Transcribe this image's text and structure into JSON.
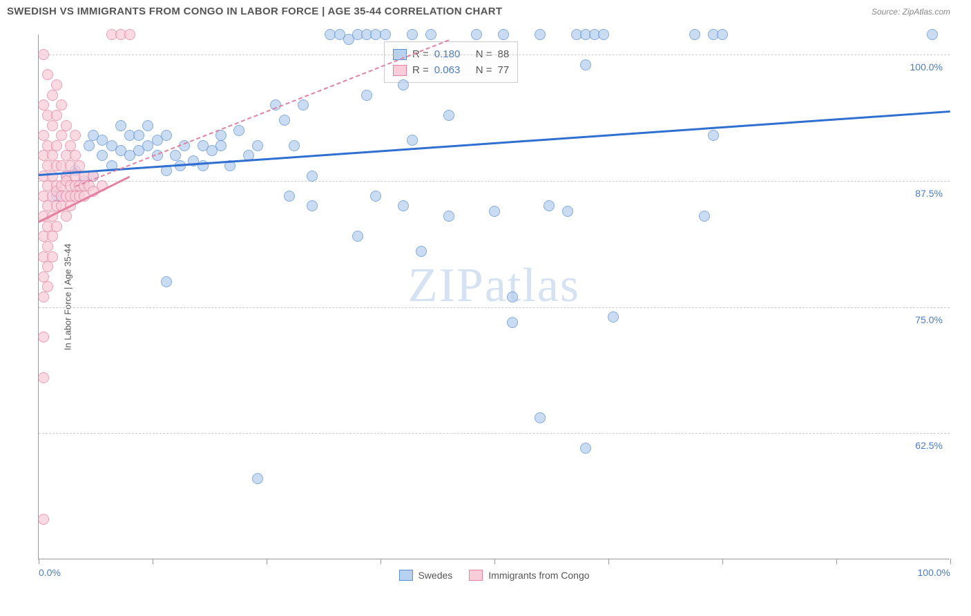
{
  "header": {
    "title": "SWEDISH VS IMMIGRANTS FROM CONGO IN LABOR FORCE | AGE 35-44 CORRELATION CHART",
    "source": "Source: ZipAtlas.com"
  },
  "watermark": {
    "zip": "ZIP",
    "atlas": "atlas"
  },
  "chart": {
    "type": "scatter",
    "yaxis_title": "In Labor Force | Age 35-44",
    "xlim": [
      0,
      100
    ],
    "ylim": [
      50,
      102
    ],
    "yticks": [
      62.5,
      75.0,
      87.5,
      100.0
    ],
    "ytick_labels": [
      "62.5%",
      "75.0%",
      "87.5%",
      "100.0%"
    ],
    "xticks": [
      0,
      12.5,
      25,
      37.5,
      50,
      62.5,
      75,
      87.5,
      100
    ],
    "xtick_labels_shown": {
      "0": "0.0%",
      "100": "100.0%"
    },
    "background_color": "#ffffff",
    "grid_color": "#cccccc",
    "marker_radius": 8,
    "colors": {
      "blue_fill": "#b8d1ee",
      "blue_stroke": "#5b8fd4",
      "pink_fill": "#f7cdd9",
      "pink_stroke": "#e87fa0",
      "blue_line": "#2e6fd0",
      "pink_line": "#e87fa0"
    },
    "series": [
      {
        "name": "Swedes",
        "color_key": "blue",
        "R": "0.180",
        "N": "88",
        "trend": {
          "x1": 0,
          "y1": 88.2,
          "x2": 100,
          "y2": 94.5,
          "style": "solid"
        },
        "trend_dash": {
          "x1": 4,
          "y1": 87.0,
          "x2": 45,
          "y2": 101.5,
          "style": "dash"
        },
        "points": [
          [
            2,
            86
          ],
          [
            3,
            88
          ],
          [
            4,
            88.5
          ],
          [
            5,
            87.5
          ],
          [
            6,
            88
          ],
          [
            5.5,
            91
          ],
          [
            6,
            92
          ],
          [
            7,
            90
          ],
          [
            7,
            91.5
          ],
          [
            8,
            89
          ],
          [
            8,
            91
          ],
          [
            9,
            90.5
          ],
          [
            9,
            93
          ],
          [
            10,
            92
          ],
          [
            10,
            90
          ],
          [
            11,
            90.5
          ],
          [
            11,
            92
          ],
          [
            12,
            91
          ],
          [
            12,
            93
          ],
          [
            13,
            90
          ],
          [
            13,
            91.5
          ],
          [
            14,
            92
          ],
          [
            14,
            88.5
          ],
          [
            15,
            90
          ],
          [
            15.5,
            89
          ],
          [
            16,
            91
          ],
          [
            17,
            89.5
          ],
          [
            18,
            89
          ],
          [
            18,
            91
          ],
          [
            19,
            90.5
          ],
          [
            20,
            91
          ],
          [
            20,
            92
          ],
          [
            21,
            89
          ],
          [
            22,
            92.5
          ],
          [
            23,
            90
          ],
          [
            24,
            91
          ],
          [
            14,
            77.5
          ],
          [
            26,
            95
          ],
          [
            27,
            93.5
          ],
          [
            27.5,
            86
          ],
          [
            28,
            91
          ],
          [
            29,
            95
          ],
          [
            30,
            88
          ],
          [
            30,
            85
          ],
          [
            32,
            102
          ],
          [
            33,
            102
          ],
          [
            34,
            101.5
          ],
          [
            35,
            102
          ],
          [
            36,
            102
          ],
          [
            35,
            82
          ],
          [
            36,
            96
          ],
          [
            37,
            86
          ],
          [
            37,
            102
          ],
          [
            38,
            102
          ],
          [
            24,
            58
          ],
          [
            40,
            97
          ],
          [
            40,
            85
          ],
          [
            41,
            91.5
          ],
          [
            41,
            102
          ],
          [
            42,
            80.5
          ],
          [
            43,
            102
          ],
          [
            45,
            94
          ],
          [
            45,
            84
          ],
          [
            48,
            102
          ],
          [
            50,
            84.5
          ],
          [
            51,
            102
          ],
          [
            52,
            73.5
          ],
          [
            52,
            76
          ],
          [
            55,
            102
          ],
          [
            56,
            85
          ],
          [
            58,
            84.5
          ],
          [
            59,
            102
          ],
          [
            60,
            102
          ],
          [
            60,
            99
          ],
          [
            61,
            102
          ],
          [
            62,
            102
          ],
          [
            55,
            64
          ],
          [
            63,
            74
          ],
          [
            60,
            61
          ],
          [
            72,
            102
          ],
          [
            73,
            84
          ],
          [
            74,
            102
          ],
          [
            74,
            92
          ],
          [
            75,
            102
          ],
          [
            98,
            102
          ]
        ]
      },
      {
        "name": "Immigrants from Congo",
        "color_key": "pink",
        "R": "0.063",
        "N": "77",
        "trend": {
          "x1": 0,
          "y1": 83.5,
          "x2": 10,
          "y2": 88.0,
          "style": "solid"
        },
        "points": [
          [
            0.5,
            100
          ],
          [
            0.5,
            95
          ],
          [
            0.5,
            92
          ],
          [
            0.5,
            90
          ],
          [
            0.5,
            88
          ],
          [
            0.5,
            86
          ],
          [
            0.5,
            84
          ],
          [
            0.5,
            82
          ],
          [
            0.5,
            80
          ],
          [
            0.5,
            78
          ],
          [
            0.5,
            76
          ],
          [
            0.5,
            72
          ],
          [
            0.5,
            68
          ],
          [
            0.5,
            54
          ],
          [
            1,
            98
          ],
          [
            1,
            94
          ],
          [
            1,
            91
          ],
          [
            1,
            89
          ],
          [
            1,
            87
          ],
          [
            1,
            85
          ],
          [
            1,
            83
          ],
          [
            1,
            81
          ],
          [
            1,
            79
          ],
          [
            1,
            77
          ],
          [
            1.5,
            96
          ],
          [
            1.5,
            93
          ],
          [
            1.5,
            90
          ],
          [
            1.5,
            88
          ],
          [
            1.5,
            86
          ],
          [
            1.5,
            84
          ],
          [
            1.5,
            82
          ],
          [
            1.5,
            80
          ],
          [
            2,
            97
          ],
          [
            2,
            94
          ],
          [
            2,
            91
          ],
          [
            2,
            89
          ],
          [
            2,
            87
          ],
          [
            2,
            85
          ],
          [
            2,
            83
          ],
          [
            2,
            86.5
          ],
          [
            2.5,
            95
          ],
          [
            2.5,
            92
          ],
          [
            2.5,
            89
          ],
          [
            2.5,
            87
          ],
          [
            2.5,
            85
          ],
          [
            2.5,
            86
          ],
          [
            3,
            93
          ],
          [
            3,
            90
          ],
          [
            3,
            88
          ],
          [
            3,
            86
          ],
          [
            3,
            84
          ],
          [
            3,
            87.5
          ],
          [
            3.5,
            91
          ],
          [
            3.5,
            89
          ],
          [
            3.5,
            87
          ],
          [
            3.5,
            85
          ],
          [
            3.5,
            86
          ],
          [
            4,
            92
          ],
          [
            4,
            90
          ],
          [
            4,
            88
          ],
          [
            4,
            86
          ],
          [
            4,
            87
          ],
          [
            4.5,
            89
          ],
          [
            4.5,
            87
          ],
          [
            4.5,
            86
          ],
          [
            5,
            88
          ],
          [
            5,
            87
          ],
          [
            5,
            86
          ],
          [
            5.5,
            87
          ],
          [
            6,
            88
          ],
          [
            6,
            86.5
          ],
          [
            7,
            87
          ],
          [
            8,
            102
          ],
          [
            9,
            102
          ],
          [
            10,
            102
          ]
        ]
      }
    ]
  },
  "bottom_legend": {
    "items": [
      {
        "label": "Swedes",
        "color_key": "blue"
      },
      {
        "label": "Immigrants from Congo",
        "color_key": "pink"
      }
    ]
  }
}
